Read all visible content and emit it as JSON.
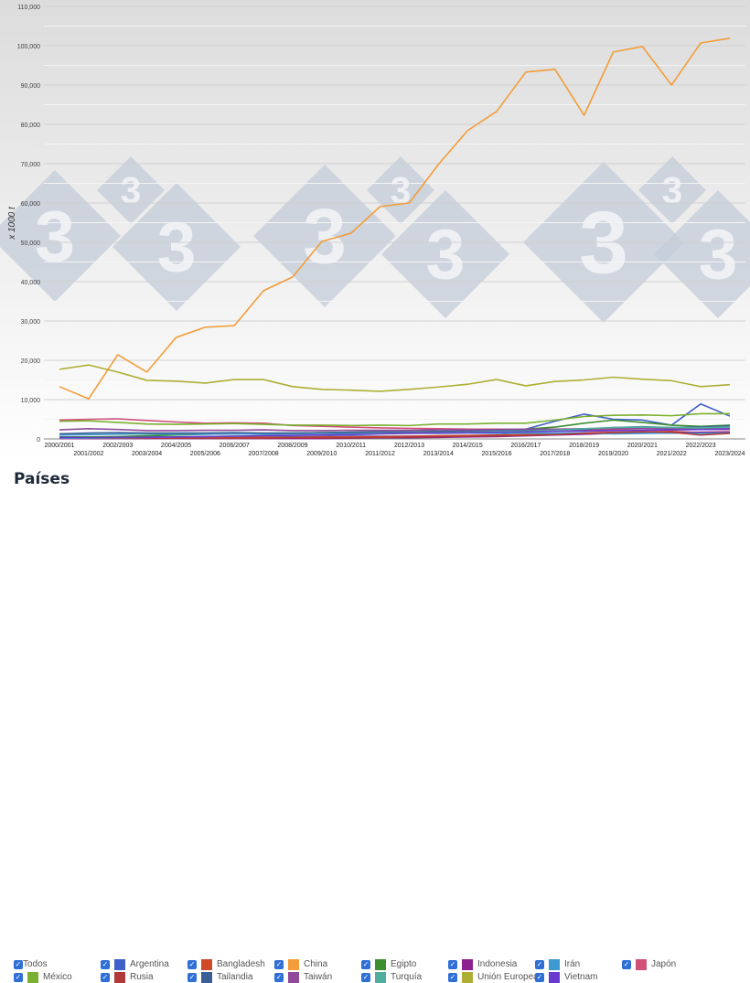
{
  "chart_data": {
    "type": "line",
    "ylabel": "x 1000 t",
    "ylim": [
      0,
      110000
    ],
    "yticks": [
      "0",
      "10,000",
      "20,000",
      "30,000",
      "40,000",
      "50,000",
      "60,000",
      "70,000",
      "80,000",
      "90,000",
      "100,000",
      "110,000"
    ],
    "grid": true,
    "legend_position": "bottom",
    "x": [
      "2000/2001",
      "2001/2002",
      "2002/2003",
      "2003/2004",
      "2004/2005",
      "2005/2006",
      "2006/2007",
      "2007/2008",
      "2008/2009",
      "2009/2010",
      "2010/2011",
      "2011/2012",
      "2012/2013",
      "2013/2014",
      "2014/2015",
      "2015/2016",
      "2016/2017",
      "2017/2018",
      "2018/2019",
      "2019/2020",
      "2020/2021",
      "2021/2022",
      "2022/2023",
      "2023/2024"
    ],
    "series": [
      {
        "name": "Argentina",
        "color": "#3f5fc9",
        "values": [
          500,
          500,
          500,
          500,
          500,
          500,
          500,
          500,
          500,
          600,
          700,
          700,
          700,
          600,
          600,
          700,
          2500,
          4500,
          6300,
          5000,
          4800,
          3500,
          8900,
          5800
        ]
      },
      {
        "name": "Bangladesh",
        "color": "#d04a2a",
        "values": [
          300,
          300,
          300,
          300,
          400,
          400,
          400,
          400,
          400,
          500,
          500,
          600,
          700,
          800,
          900,
          1000,
          1100,
          1300,
          1500,
          1700,
          1800,
          1900,
          1600,
          1800
        ]
      },
      {
        "name": "China",
        "color": "#f29d3a",
        "values": [
          13300,
          10200,
          21400,
          17000,
          25800,
          28400,
          28800,
          37700,
          41200,
          50200,
          52300,
          59100,
          60000,
          69800,
          78400,
          83300,
          93300,
          94000,
          82300,
          98400,
          99800,
          90000,
          100700,
          101900
        ]
      },
      {
        "name": "Egipto",
        "color": "#3b8f2e",
        "values": [
          400,
          500,
          600,
          800,
          1000,
          1200,
          1300,
          1400,
          1500,
          1600,
          1700,
          1800,
          1800,
          1900,
          2000,
          2100,
          2500,
          3000,
          4000,
          4800,
          4200,
          3500,
          3200,
          3500
        ]
      },
      {
        "name": "Indonesia",
        "color": "#8e1f8e",
        "values": [
          100,
          100,
          100,
          100,
          100,
          100,
          100,
          100,
          100,
          100,
          200,
          300,
          300,
          400,
          500,
          600,
          800,
          1000,
          1200,
          1400,
          1500,
          1600,
          1700,
          1800
        ]
      },
      {
        "name": "Irán",
        "color": "#3d9ad0",
        "values": [
          1000,
          1100,
          1200,
          1300,
          1200,
          1200,
          1300,
          1200,
          1300,
          1400,
          1500,
          1400,
          1500,
          1400,
          1500,
          1400,
          1500,
          1400,
          1500,
          1300,
          1400,
          1500,
          1400,
          1500
        ]
      },
      {
        "name": "Japón",
        "color": "#d05078",
        "values": [
          4800,
          5000,
          5100,
          4700,
          4300,
          4000,
          4100,
          4000,
          3400,
          3200,
          3000,
          2800,
          2700,
          2600,
          2500,
          2500,
          2400,
          2300,
          2300,
          2300,
          2200,
          2300,
          2400,
          2400
        ]
      },
      {
        "name": "México",
        "color": "#7aaf2f",
        "values": [
          4500,
          4600,
          4200,
          3800,
          3700,
          3800,
          3900,
          3700,
          3500,
          3500,
          3400,
          3500,
          3400,
          3800,
          3800,
          4000,
          4000,
          4800,
          5700,
          6000,
          6100,
          5900,
          6400,
          6400
        ]
      },
      {
        "name": "Rusia",
        "color": "#b03a3a",
        "values": [
          200,
          200,
          200,
          200,
          200,
          200,
          200,
          200,
          300,
          300,
          300,
          400,
          500,
          600,
          700,
          800,
          900,
          1100,
          1400,
          1600,
          1800,
          1700,
          1000,
          1400
        ]
      },
      {
        "name": "Tailandia",
        "color": "#3b5f95",
        "values": [
          1300,
          1500,
          1600,
          1500,
          1500,
          1500,
          1600,
          1500,
          1500,
          1600,
          1700,
          1800,
          1800,
          1900,
          2000,
          2100,
          2200,
          2300,
          2400,
          2900,
          3100,
          2900,
          3000,
          3300
        ]
      },
      {
        "name": "Taiwán",
        "color": "#8f4a9a",
        "values": [
          2300,
          2600,
          2400,
          2100,
          2100,
          2200,
          2200,
          2300,
          2100,
          2100,
          2200,
          2200,
          2200,
          2300,
          2300,
          2400,
          2500,
          2500,
          2600,
          2600,
          2700,
          2600,
          2600,
          2700
        ]
      },
      {
        "name": "Turquía",
        "color": "#4fae9e",
        "values": [
          200,
          200,
          300,
          400,
          500,
          600,
          700,
          800,
          900,
          1000,
          1200,
          1400,
          1500,
          1600,
          1700,
          1900,
          2000,
          2200,
          2600,
          2900,
          3000,
          2900,
          2800,
          3000
        ]
      },
      {
        "name": "Unión Europea",
        "color": "#aeae35",
        "values": [
          17700,
          18800,
          17000,
          14900,
          14700,
          14200,
          15100,
          15100,
          13300,
          12600,
          12400,
          12100,
          12600,
          13200,
          13900,
          15100,
          13500,
          14600,
          15000,
          15700,
          15200,
          14800,
          13300,
          13800
        ]
      },
      {
        "name": "Vietnam",
        "color": "#6a3ad0",
        "values": [
          300,
          300,
          400,
          400,
          500,
          600,
          700,
          800,
          900,
          1000,
          1100,
          1300,
          1400,
          1500,
          1600,
          1700,
          1800,
          1900,
          2000,
          2100,
          2200,
          2300,
          2400,
          2500
        ]
      }
    ]
  },
  "legend": {
    "title": "Países",
    "all_label": "Todos"
  }
}
